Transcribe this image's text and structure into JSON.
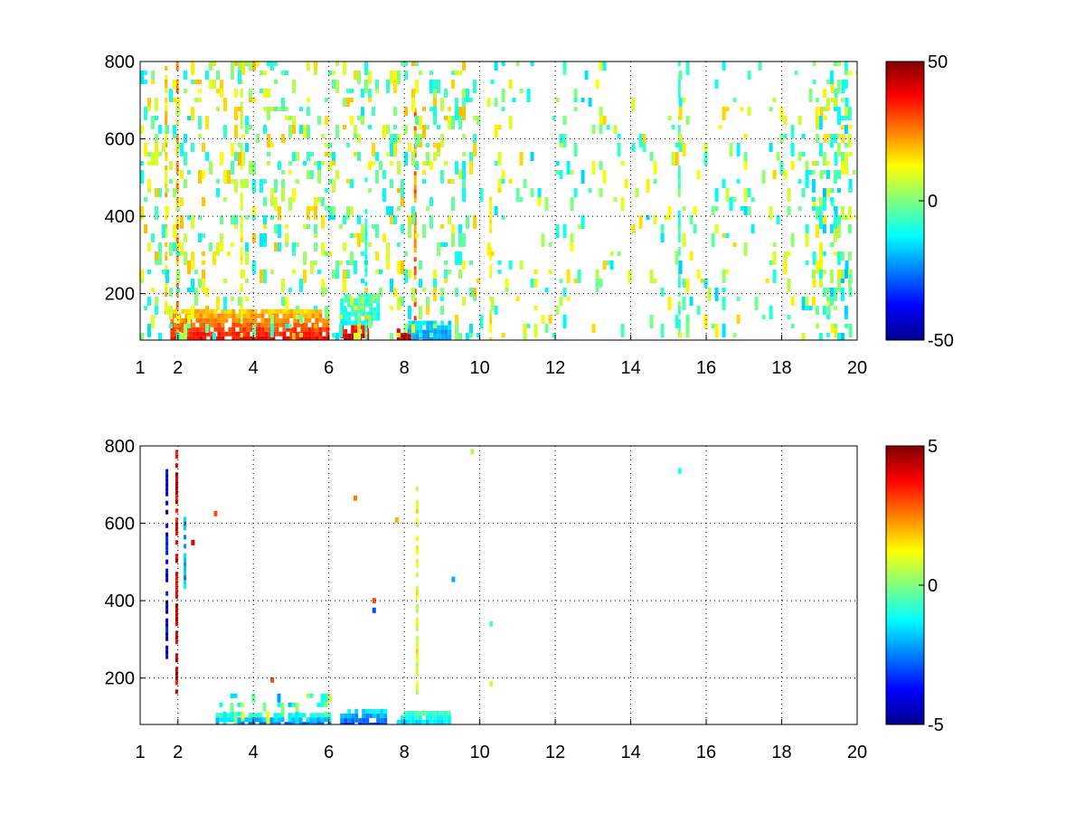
{
  "chart_data": [
    {
      "type": "heatmap",
      "title": "",
      "xlabel": "",
      "ylabel": "",
      "xlim": [
        1,
        20
      ],
      "ylim": [
        80,
        800
      ],
      "x_ticks": [
        1,
        2,
        4,
        6,
        8,
        10,
        12,
        14,
        16,
        18,
        20
      ],
      "y_ticks": [
        200,
        400,
        600,
        800
      ],
      "grid": true,
      "grid_style": "dotted",
      "colormap": "jet",
      "colorbar": {
        "min": -50,
        "max": 50,
        "ticks": [
          50,
          0,
          -50
        ]
      },
      "features": [
        {
          "kind": "band",
          "x": [
            1.8,
            6.0
          ],
          "y": [
            80,
            160
          ],
          "value": 18,
          "peak": 40
        },
        {
          "kind": "band",
          "x": [
            6.3,
            7.0
          ],
          "y": [
            80,
            120
          ],
          "value": 35,
          "peak": 45
        },
        {
          "kind": "band",
          "x": [
            7.8,
            8.1
          ],
          "y": [
            80,
            110
          ],
          "value": 38,
          "peak": 45
        },
        {
          "kind": "band",
          "x": [
            8.1,
            9.2
          ],
          "y": [
            80,
            130
          ],
          "value": -15,
          "peak": -25
        },
        {
          "kind": "band",
          "x": [
            6.3,
            7.3
          ],
          "y": [
            120,
            200
          ],
          "value": -5,
          "peak": -12
        },
        {
          "kind": "column",
          "x": 2.0,
          "y": [
            80,
            800
          ],
          "value": 22
        },
        {
          "kind": "column",
          "x": 1.7,
          "y": [
            150,
            800
          ],
          "value": 15
        },
        {
          "kind": "column",
          "x": 3.7,
          "y": [
            80,
            800
          ],
          "value": 10
        },
        {
          "kind": "column",
          "x": 8.3,
          "y": [
            140,
            680
          ],
          "value": 25
        },
        {
          "kind": "column",
          "x": 7.0,
          "y": [
            80,
            500
          ],
          "value": -8
        },
        {
          "kind": "column",
          "x": 10.3,
          "y": [
            80,
            450
          ],
          "value": 10
        },
        {
          "kind": "column",
          "x": 15.3,
          "y": [
            80,
            800
          ],
          "value": -5
        },
        {
          "kind": "scatter",
          "x": [
            1,
            10
          ],
          "y": [
            80,
            800
          ],
          "density": 0.22,
          "value": 2
        },
        {
          "kind": "scatter",
          "x": [
            10,
            20
          ],
          "y": [
            80,
            800
          ],
          "density": 0.1,
          "value": 0
        },
        {
          "kind": "scatter",
          "x": [
            18.8,
            19.8
          ],
          "y": [
            80,
            800
          ],
          "density": 0.35,
          "value": -2
        }
      ]
    },
    {
      "type": "heatmap",
      "title": "",
      "xlabel": "",
      "ylabel": "",
      "xlim": [
        1,
        20
      ],
      "ylim": [
        80,
        800
      ],
      "x_ticks": [
        1,
        2,
        4,
        6,
        8,
        10,
        12,
        14,
        16,
        18,
        20
      ],
      "y_ticks": [
        200,
        400,
        600,
        800
      ],
      "grid": true,
      "grid_style": "dotted",
      "colormap": "jet",
      "colorbar": {
        "min": -5,
        "max": 5,
        "ticks": [
          5,
          0,
          -5
        ]
      },
      "features": [
        {
          "kind": "band",
          "x": [
            3.0,
            6.0
          ],
          "y": [
            80,
            110
          ],
          "value": -1,
          "peak": -3
        },
        {
          "kind": "band",
          "x": [
            6.3,
            7.5
          ],
          "y": [
            80,
            120
          ],
          "value": -1.5,
          "peak": -3.5
        },
        {
          "kind": "band",
          "x": [
            7.8,
            9.2
          ],
          "y": [
            80,
            115
          ],
          "value": -0.5,
          "peak": -2
        },
        {
          "kind": "scatter",
          "x": [
            3.0,
            6.0
          ],
          "y": [
            110,
            160
          ],
          "density": 0.3,
          "value": -0.5
        },
        {
          "kind": "column",
          "x": 1.98,
          "y": [
            170,
            790
          ],
          "value": 4
        },
        {
          "kind": "column",
          "x": 1.72,
          "y": [
            250,
            740
          ],
          "value": -4
        },
        {
          "kind": "column",
          "x": 2.2,
          "y": [
            430,
            640
          ],
          "value": -2
        },
        {
          "kind": "column",
          "x": 8.35,
          "y": [
            160,
            730
          ],
          "value": 1
        },
        {
          "kind": "point",
          "x": 9.3,
          "y": 455,
          "value": -2
        },
        {
          "kind": "point",
          "x": 7.2,
          "y": 375,
          "value": -3
        },
        {
          "kind": "point",
          "x": 7.2,
          "y": 400,
          "value": 3
        },
        {
          "kind": "point",
          "x": 10.3,
          "y": 185,
          "value": 0.8
        },
        {
          "kind": "point",
          "x": 10.3,
          "y": 340,
          "value": -0.5
        },
        {
          "kind": "point",
          "x": 15.3,
          "y": 735,
          "value": -1
        },
        {
          "kind": "point",
          "x": 9.8,
          "y": 785,
          "value": 0.5
        },
        {
          "kind": "point",
          "x": 7.8,
          "y": 608,
          "value": 2
        },
        {
          "kind": "point",
          "x": 3.0,
          "y": 625,
          "value": 3
        },
        {
          "kind": "point",
          "x": 2.4,
          "y": 550,
          "value": 4
        },
        {
          "kind": "point",
          "x": 6.7,
          "y": 665,
          "value": 2.5
        },
        {
          "kind": "point",
          "x": 4.5,
          "y": 195,
          "value": 3
        }
      ]
    }
  ]
}
